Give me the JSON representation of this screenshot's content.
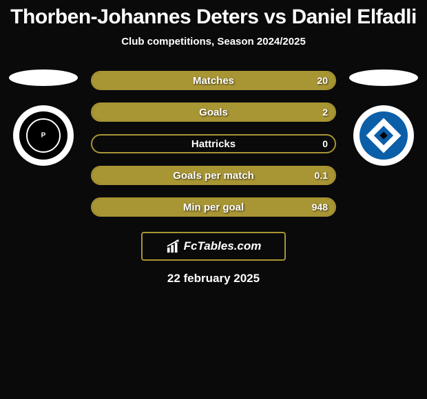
{
  "title": "Thorben-Johannes Deters vs Daniel Elfadli",
  "subtitle": "Club competitions, Season 2024/2025",
  "date": "22 february 2025",
  "brand": "FcTables.com",
  "colors": {
    "accent": "#a89534",
    "background": "#0a0a0a",
    "text": "#ffffff",
    "club_right_blue": "#0b5fa8"
  },
  "bars": [
    {
      "label": "Matches",
      "left": "",
      "right": "20",
      "fill_left_pct": 0,
      "fill_right_pct": 100
    },
    {
      "label": "Goals",
      "left": "",
      "right": "2",
      "fill_left_pct": 0,
      "fill_right_pct": 100
    },
    {
      "label": "Hattricks",
      "left": "",
      "right": "0",
      "fill_left_pct": 0,
      "fill_right_pct": 0
    },
    {
      "label": "Goals per match",
      "left": "",
      "right": "0.1",
      "fill_left_pct": 0,
      "fill_right_pct": 100
    },
    {
      "label": "Min per goal",
      "left": "",
      "right": "948",
      "fill_left_pct": 0,
      "fill_right_pct": 100
    }
  ]
}
